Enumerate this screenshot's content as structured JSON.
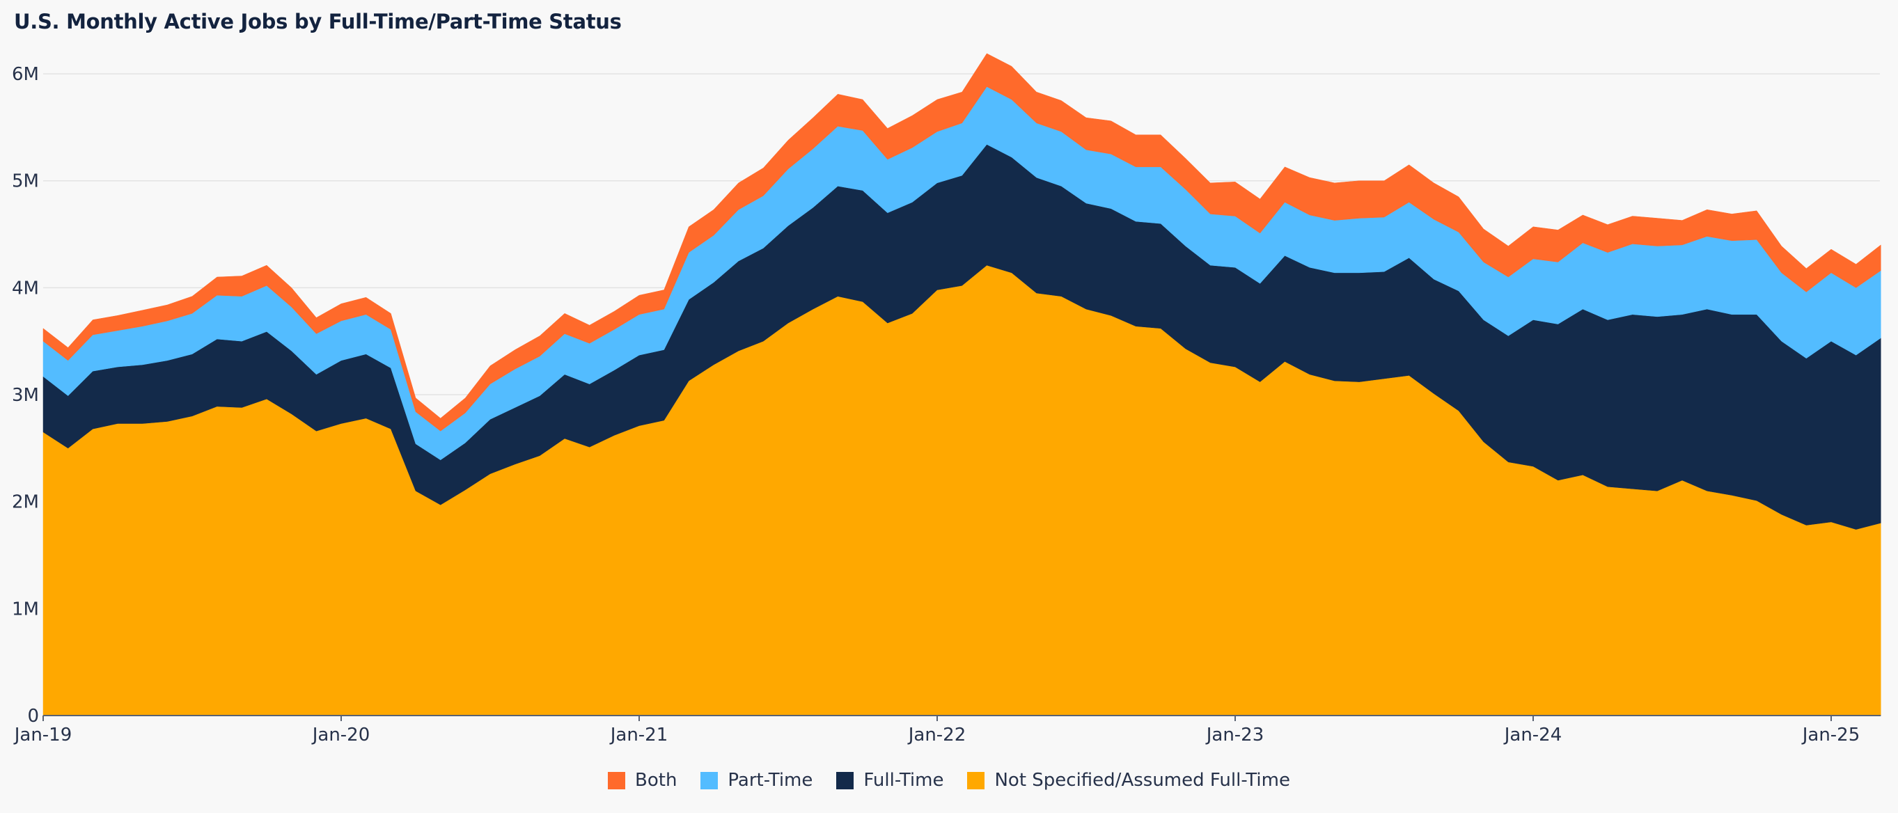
{
  "title": "U.S. Monthly Active Jobs by Full-Time/Part-Time Status",
  "chart_data": {
    "type": "area",
    "stacked": true,
    "title": "U.S. Monthly Active Jobs by Full-Time/Part-Time Status",
    "xlabel": "",
    "ylabel": "",
    "x_start": "Jan-19",
    "x_tick_labels": [
      "Jan-19",
      "Jan-20",
      "Jan-21",
      "Jan-22",
      "Jan-23",
      "Jan-24",
      "Jan-25"
    ],
    "y_ticks": [
      0,
      1000000,
      2000000,
      3000000,
      4000000,
      5000000,
      6000000
    ],
    "y_tick_labels": [
      "0",
      "1M",
      "2M",
      "3M",
      "4M",
      "5M",
      "6M"
    ],
    "ylim": [
      0,
      6300000
    ],
    "grid": "horizontal",
    "legend_position": "bottom-center",
    "x": [
      "2019-01",
      "2019-02",
      "2019-03",
      "2019-04",
      "2019-05",
      "2019-06",
      "2019-07",
      "2019-08",
      "2019-09",
      "2019-10",
      "2019-11",
      "2019-12",
      "2020-01",
      "2020-02",
      "2020-03",
      "2020-04",
      "2020-05",
      "2020-06",
      "2020-07",
      "2020-08",
      "2020-09",
      "2020-10",
      "2020-11",
      "2020-12",
      "2021-01",
      "2021-02",
      "2021-03",
      "2021-04",
      "2021-05",
      "2021-06",
      "2021-07",
      "2021-08",
      "2021-09",
      "2021-10",
      "2021-11",
      "2021-12",
      "2022-01",
      "2022-02",
      "2022-03",
      "2022-04",
      "2022-05",
      "2022-06",
      "2022-07",
      "2022-08",
      "2022-09",
      "2022-10",
      "2022-11",
      "2022-12",
      "2023-01",
      "2023-02",
      "2023-03",
      "2023-04",
      "2023-05",
      "2023-06",
      "2023-07",
      "2023-08",
      "2023-09",
      "2023-10",
      "2023-11",
      "2023-12",
      "2024-01",
      "2024-02",
      "2024-03",
      "2024-04",
      "2024-05",
      "2024-06",
      "2024-07",
      "2024-08",
      "2024-09",
      "2024-10",
      "2024-11",
      "2024-12",
      "2025-01",
      "2025-02",
      "2025-03"
    ],
    "series": [
      {
        "name": "Not Specified/Assumed Full-Time",
        "color": "#ffa800",
        "values": [
          2650000,
          2500000,
          2680000,
          2730000,
          2730000,
          2750000,
          2800000,
          2890000,
          2880000,
          2960000,
          2820000,
          2660000,
          2730000,
          2780000,
          2680000,
          2100000,
          1970000,
          2110000,
          2260000,
          2350000,
          2430000,
          2590000,
          2510000,
          2620000,
          2710000,
          2760000,
          3130000,
          3280000,
          3410000,
          3500000,
          3670000,
          3800000,
          3920000,
          3870000,
          3670000,
          3760000,
          3980000,
          4020000,
          4210000,
          4140000,
          3950000,
          3920000,
          3800000,
          3740000,
          3640000,
          3620000,
          3430000,
          3300000,
          3260000,
          3120000,
          3310000,
          3190000,
          3130000,
          3120000,
          3150000,
          3180000,
          3010000,
          2850000,
          2560000,
          2370000,
          2330000,
          2200000,
          2250000,
          2140000,
          2120000,
          2100000,
          2200000,
          2100000,
          2060000,
          2010000,
          1880000,
          1780000,
          1810000,
          1740000,
          1800000
        ]
      },
      {
        "name": "Full-Time",
        "color": "#132a4a",
        "values": [
          520000,
          490000,
          540000,
          530000,
          550000,
          570000,
          580000,
          630000,
          620000,
          630000,
          590000,
          530000,
          590000,
          600000,
          570000,
          440000,
          420000,
          440000,
          510000,
          530000,
          560000,
          600000,
          590000,
          610000,
          660000,
          660000,
          760000,
          770000,
          840000,
          870000,
          910000,
          950000,
          1030000,
          1040000,
          1030000,
          1040000,
          1000000,
          1030000,
          1130000,
          1080000,
          1080000,
          1030000,
          990000,
          1000000,
          980000,
          980000,
          960000,
          910000,
          930000,
          920000,
          990000,
          1000000,
          1010000,
          1020000,
          1000000,
          1100000,
          1070000,
          1120000,
          1140000,
          1180000,
          1370000,
          1460000,
          1550000,
          1560000,
          1630000,
          1630000,
          1550000,
          1700000,
          1690000,
          1740000,
          1620000,
          1560000,
          1690000,
          1630000,
          1730000
        ]
      },
      {
        "name": "Part-Time",
        "color": "#53bcff",
        "values": [
          330000,
          330000,
          340000,
          340000,
          360000,
          370000,
          380000,
          410000,
          420000,
          430000,
          410000,
          380000,
          370000,
          370000,
          360000,
          300000,
          270000,
          280000,
          330000,
          360000,
          370000,
          380000,
          380000,
          380000,
          380000,
          380000,
          440000,
          440000,
          480000,
          490000,
          530000,
          550000,
          560000,
          560000,
          500000,
          510000,
          480000,
          490000,
          540000,
          540000,
          510000,
          510000,
          500000,
          510000,
          510000,
          530000,
          530000,
          480000,
          480000,
          470000,
          500000,
          490000,
          490000,
          510000,
          510000,
          520000,
          560000,
          550000,
          540000,
          550000,
          570000,
          580000,
          620000,
          630000,
          660000,
          660000,
          650000,
          680000,
          690000,
          700000,
          640000,
          620000,
          640000,
          630000,
          630000
        ]
      },
      {
        "name": "Both",
        "color": "#ff6a2b",
        "values": [
          120000,
          120000,
          140000,
          140000,
          150000,
          150000,
          160000,
          170000,
          190000,
          190000,
          180000,
          150000,
          160000,
          160000,
          150000,
          130000,
          120000,
          140000,
          170000,
          180000,
          190000,
          190000,
          170000,
          170000,
          180000,
          180000,
          240000,
          240000,
          250000,
          260000,
          270000,
          290000,
          300000,
          290000,
          290000,
          300000,
          300000,
          290000,
          310000,
          310000,
          290000,
          290000,
          300000,
          310000,
          300000,
          300000,
          290000,
          290000,
          320000,
          320000,
          330000,
          350000,
          350000,
          350000,
          340000,
          350000,
          340000,
          330000,
          310000,
          290000,
          300000,
          300000,
          260000,
          260000,
          260000,
          260000,
          230000,
          250000,
          250000,
          270000,
          250000,
          220000,
          220000,
          220000,
          240000
        ]
      }
    ],
    "legend": [
      "Both",
      "Part-Time",
      "Full-Time",
      "Not Specified/Assumed Full-Time"
    ]
  },
  "legend_items": [
    {
      "label": "Both",
      "color": "#ff6a2b"
    },
    {
      "label": "Part-Time",
      "color": "#53bcff"
    },
    {
      "label": "Full-Time",
      "color": "#132a4a"
    },
    {
      "label": "Not Specified/Assumed Full-Time",
      "color": "#ffa800"
    }
  ]
}
